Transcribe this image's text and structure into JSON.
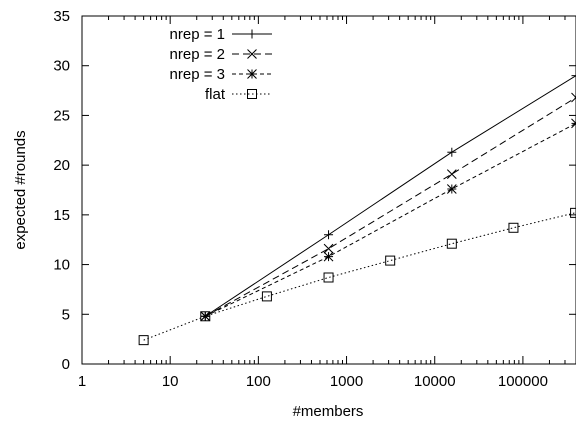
{
  "chart_data": {
    "type": "line",
    "title": "",
    "xlabel": "#members",
    "ylabel": "expected #rounds",
    "x_scale": "log",
    "xlim": [
      1,
      400000
    ],
    "ylim": [
      0,
      35
    ],
    "x_ticks": [
      1,
      10,
      100,
      1000,
      10000,
      100000
    ],
    "x_tick_labels": [
      "1",
      "10",
      "100",
      "1000",
      "10000",
      "100000"
    ],
    "y_ticks": [
      0,
      5,
      10,
      15,
      20,
      25,
      30,
      35
    ],
    "y_tick_labels": [
      "0",
      "5",
      "10",
      "15",
      "20",
      "25",
      "30",
      "35"
    ],
    "grid": false,
    "legend_position": "top-left",
    "series": [
      {
        "name": "nrep = 1",
        "line_style": "solid",
        "marker": "plus",
        "x": [
          25,
          625,
          15625,
          400000
        ],
        "y": [
          4.8,
          13.0,
          21.3,
          29.0
        ]
      },
      {
        "name": "nrep = 2",
        "line_style": "dashed",
        "marker": "cross",
        "x": [
          25,
          625,
          15625,
          400000
        ],
        "y": [
          4.8,
          11.6,
          19.1,
          26.8
        ]
      },
      {
        "name": "nrep = 3",
        "line_style": "short-dashed",
        "marker": "asterisk",
        "x": [
          25,
          625,
          15625,
          400000
        ],
        "y": [
          4.8,
          10.8,
          17.6,
          24.2
        ]
      },
      {
        "name": "flat",
        "line_style": "dotted",
        "marker": "square",
        "x": [
          5,
          25,
          125,
          625,
          3125,
          15625,
          78125,
          390625
        ],
        "y": [
          2.4,
          4.8,
          6.8,
          8.7,
          10.4,
          12.1,
          13.7,
          15.2
        ]
      }
    ]
  }
}
